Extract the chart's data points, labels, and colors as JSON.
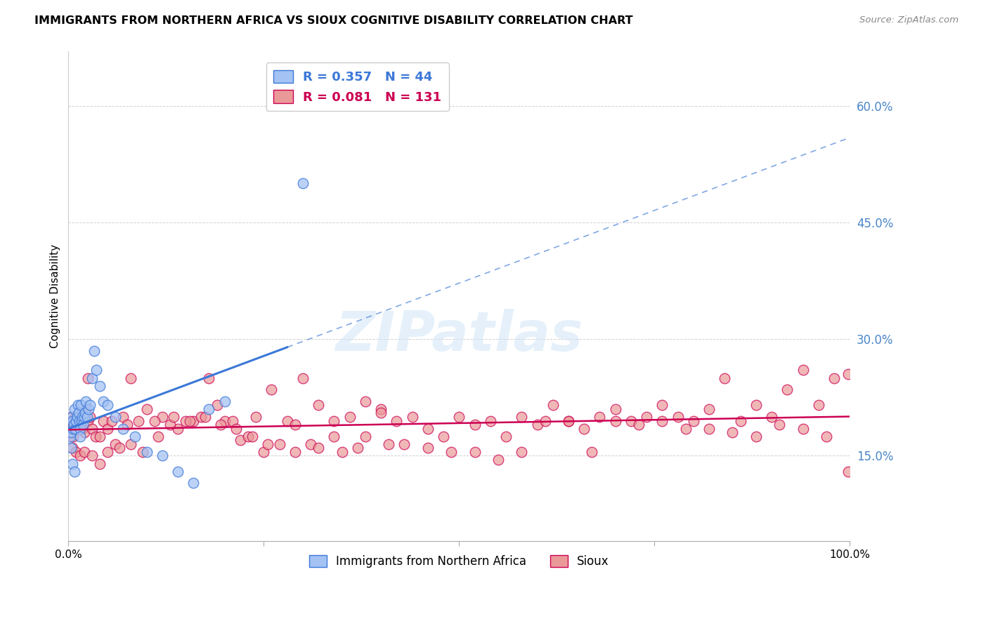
{
  "title": "IMMIGRANTS FROM NORTHERN AFRICA VS SIOUX COGNITIVE DISABILITY CORRELATION CHART",
  "source_text": "Source: ZipAtlas.com",
  "ylabel": "Cognitive Disability",
  "xlim": [
    0.0,
    1.0
  ],
  "ylim": [
    0.04,
    0.67
  ],
  "yticks": [
    0.15,
    0.3,
    0.45,
    0.6
  ],
  "ytick_labels": [
    "15.0%",
    "30.0%",
    "45.0%",
    "60.0%"
  ],
  "blue_R": 0.357,
  "blue_N": 44,
  "pink_R": 0.081,
  "pink_N": 131,
  "blue_label": "Immigrants from Northern Africa",
  "pink_label": "Sioux",
  "blue_color": "#a4c2f4",
  "pink_color": "#ea9999",
  "blue_line_color": "#3c78d8",
  "pink_line_color": "#cc0052",
  "axis_color": "#4a86c8",
  "background_color": "#ffffff",
  "watermark": "ZIPatlas",
  "blue_scatter_x": [
    0.002,
    0.003,
    0.004,
    0.005,
    0.006,
    0.007,
    0.008,
    0.009,
    0.01,
    0.011,
    0.012,
    0.013,
    0.014,
    0.015,
    0.016,
    0.017,
    0.018,
    0.019,
    0.02,
    0.021,
    0.022,
    0.024,
    0.026,
    0.028,
    0.03,
    0.033,
    0.036,
    0.04,
    0.045,
    0.05,
    0.06,
    0.07,
    0.085,
    0.1,
    0.12,
    0.14,
    0.16,
    0.18,
    0.2,
    0.003,
    0.005,
    0.008,
    0.015,
    0.3
  ],
  "blue_scatter_y": [
    0.175,
    0.18,
    0.2,
    0.195,
    0.185,
    0.19,
    0.21,
    0.185,
    0.195,
    0.2,
    0.215,
    0.205,
    0.195,
    0.185,
    0.215,
    0.195,
    0.2,
    0.19,
    0.2,
    0.205,
    0.22,
    0.2,
    0.21,
    0.215,
    0.25,
    0.285,
    0.26,
    0.24,
    0.22,
    0.215,
    0.2,
    0.185,
    0.175,
    0.155,
    0.15,
    0.13,
    0.115,
    0.21,
    0.22,
    0.16,
    0.14,
    0.13,
    0.175,
    0.5
  ],
  "pink_scatter_x": [
    0.002,
    0.003,
    0.004,
    0.005,
    0.006,
    0.007,
    0.008,
    0.009,
    0.01,
    0.012,
    0.015,
    0.018,
    0.02,
    0.022,
    0.025,
    0.028,
    0.03,
    0.035,
    0.04,
    0.045,
    0.05,
    0.06,
    0.07,
    0.08,
    0.09,
    0.1,
    0.12,
    0.14,
    0.16,
    0.18,
    0.2,
    0.22,
    0.24,
    0.26,
    0.28,
    0.3,
    0.32,
    0.34,
    0.36,
    0.38,
    0.4,
    0.42,
    0.44,
    0.46,
    0.48,
    0.5,
    0.52,
    0.54,
    0.56,
    0.58,
    0.6,
    0.62,
    0.64,
    0.66,
    0.68,
    0.7,
    0.72,
    0.74,
    0.76,
    0.78,
    0.8,
    0.82,
    0.84,
    0.86,
    0.88,
    0.9,
    0.92,
    0.94,
    0.96,
    0.98,
    0.998,
    0.005,
    0.01,
    0.015,
    0.02,
    0.03,
    0.04,
    0.05,
    0.065,
    0.08,
    0.095,
    0.11,
    0.13,
    0.15,
    0.17,
    0.19,
    0.21,
    0.23,
    0.25,
    0.27,
    0.29,
    0.31,
    0.34,
    0.37,
    0.4,
    0.43,
    0.46,
    0.49,
    0.52,
    0.55,
    0.58,
    0.61,
    0.64,
    0.67,
    0.7,
    0.73,
    0.76,
    0.79,
    0.82,
    0.85,
    0.88,
    0.91,
    0.94,
    0.97,
    0.998,
    0.025,
    0.055,
    0.075,
    0.115,
    0.135,
    0.155,
    0.175,
    0.195,
    0.215,
    0.235,
    0.255,
    0.29,
    0.32,
    0.35,
    0.38,
    0.41
  ],
  "pink_scatter_y": [
    0.185,
    0.195,
    0.2,
    0.18,
    0.175,
    0.19,
    0.185,
    0.195,
    0.2,
    0.195,
    0.2,
    0.185,
    0.18,
    0.21,
    0.195,
    0.2,
    0.185,
    0.175,
    0.175,
    0.195,
    0.185,
    0.165,
    0.2,
    0.25,
    0.195,
    0.21,
    0.2,
    0.185,
    0.195,
    0.25,
    0.195,
    0.17,
    0.2,
    0.235,
    0.195,
    0.25,
    0.215,
    0.195,
    0.2,
    0.22,
    0.21,
    0.195,
    0.2,
    0.185,
    0.175,
    0.2,
    0.19,
    0.195,
    0.175,
    0.2,
    0.19,
    0.215,
    0.195,
    0.185,
    0.2,
    0.21,
    0.195,
    0.2,
    0.215,
    0.2,
    0.195,
    0.21,
    0.25,
    0.195,
    0.215,
    0.2,
    0.235,
    0.26,
    0.215,
    0.25,
    0.13,
    0.16,
    0.155,
    0.15,
    0.155,
    0.15,
    0.14,
    0.155,
    0.16,
    0.165,
    0.155,
    0.195,
    0.19,
    0.195,
    0.2,
    0.215,
    0.195,
    0.175,
    0.155,
    0.165,
    0.155,
    0.165,
    0.175,
    0.16,
    0.205,
    0.165,
    0.16,
    0.155,
    0.155,
    0.145,
    0.155,
    0.195,
    0.195,
    0.155,
    0.195,
    0.19,
    0.195,
    0.185,
    0.185,
    0.18,
    0.175,
    0.19,
    0.185,
    0.175,
    0.255,
    0.25,
    0.195,
    0.19,
    0.175,
    0.2,
    0.195,
    0.2,
    0.19,
    0.185,
    0.175,
    0.165,
    0.19,
    0.16,
    0.155,
    0.175,
    0.165
  ]
}
